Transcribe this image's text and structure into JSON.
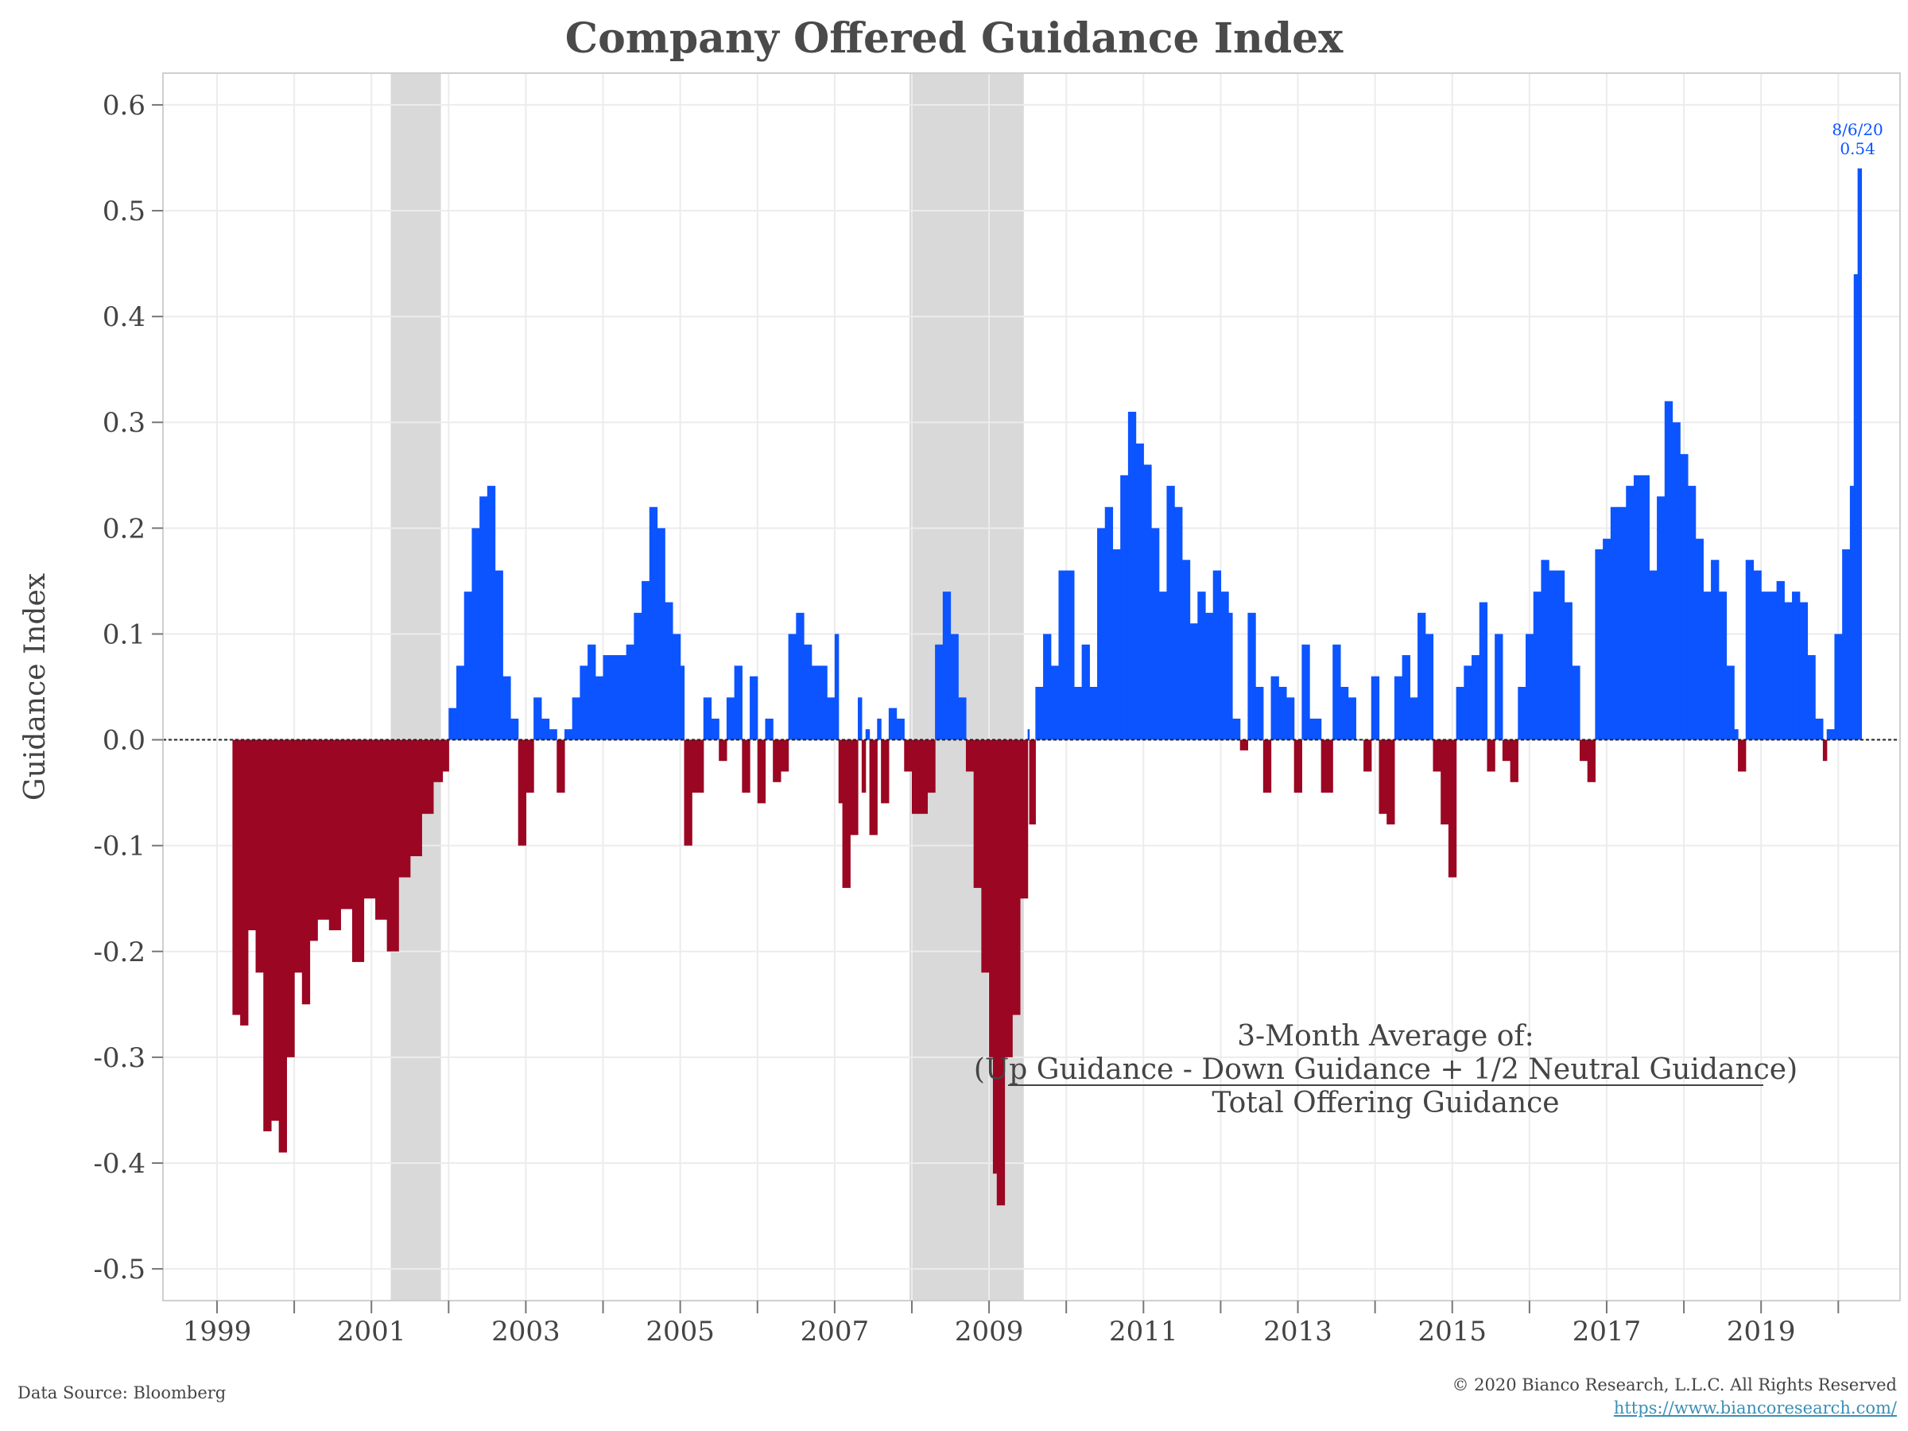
{
  "chart_data": {
    "type": "bar",
    "title": "Company Offered Guidance Index",
    "xlabel": "",
    "ylabel": "Guidance Index",
    "ylim": [
      -0.53,
      0.63
    ],
    "xlim": [
      1998.3,
      2020.8
    ],
    "yticks": [
      0.6,
      0.5,
      0.4,
      0.3,
      0.2,
      0.1,
      0.0,
      -0.1,
      -0.2,
      -0.3,
      -0.4,
      -0.5
    ],
    "ytick_labels": [
      "0.6",
      "0.5",
      "0.4",
      "0.3",
      "0.2",
      "0.1",
      "0.0",
      "-0.1",
      "-0.2",
      "-0.3",
      "-0.4",
      "-0.5"
    ],
    "xticks": [
      1999,
      2001,
      2003,
      2005,
      2007,
      2009,
      2011,
      2013,
      2015,
      2017,
      2019
    ],
    "xtick_labels": [
      "1999",
      "2001",
      "2003",
      "2005",
      "2007",
      "2009",
      "2011",
      "2013",
      "2015",
      "2017",
      "2019"
    ],
    "grid": true,
    "positive_color": "#0b54ff",
    "negative_color": "#9b0622",
    "recession_color": "#d9d9d9",
    "recessions": [
      [
        2001.25,
        2001.9
      ],
      [
        2007.97,
        2009.45
      ]
    ],
    "series": [
      {
        "points": [
          [
            1999.2,
            -0.26
          ],
          [
            1999.3,
            -0.27
          ],
          [
            1999.4,
            -0.18
          ],
          [
            1999.5,
            -0.22
          ],
          [
            1999.6,
            -0.37
          ],
          [
            1999.7,
            -0.36
          ],
          [
            1999.8,
            -0.39
          ],
          [
            1999.9,
            -0.3
          ],
          [
            2000.0,
            -0.22
          ],
          [
            2000.1,
            -0.25
          ],
          [
            2000.2,
            -0.19
          ],
          [
            2000.3,
            -0.17
          ],
          [
            2000.45,
            -0.18
          ],
          [
            2000.6,
            -0.16
          ],
          [
            2000.75,
            -0.21
          ],
          [
            2000.9,
            -0.15
          ],
          [
            2001.05,
            -0.17
          ],
          [
            2001.2,
            -0.2
          ],
          [
            2001.35,
            -0.13
          ],
          [
            2001.5,
            -0.11
          ],
          [
            2001.65,
            -0.07
          ],
          [
            2001.8,
            -0.04
          ],
          [
            2001.92,
            -0.03
          ],
          [
            2002.0,
            0.03
          ],
          [
            2002.1,
            0.07
          ],
          [
            2002.2,
            0.14
          ],
          [
            2002.3,
            0.2
          ],
          [
            2002.4,
            0.23
          ],
          [
            2002.5,
            0.24
          ],
          [
            2002.6,
            0.16
          ],
          [
            2002.7,
            0.06
          ],
          [
            2002.8,
            0.02
          ],
          [
            2002.9,
            -0.1
          ],
          [
            2003.0,
            -0.05
          ],
          [
            2003.1,
            0.04
          ],
          [
            2003.2,
            0.02
          ],
          [
            2003.3,
            0.01
          ],
          [
            2003.4,
            -0.05
          ],
          [
            2003.5,
            0.01
          ],
          [
            2003.6,
            0.04
          ],
          [
            2003.7,
            0.07
          ],
          [
            2003.8,
            0.09
          ],
          [
            2003.9,
            0.06
          ],
          [
            2004.0,
            0.08
          ],
          [
            2004.1,
            0.08
          ],
          [
            2004.2,
            0.08
          ],
          [
            2004.3,
            0.09
          ],
          [
            2004.4,
            0.12
          ],
          [
            2004.5,
            0.15
          ],
          [
            2004.6,
            0.22
          ],
          [
            2004.7,
            0.2
          ],
          [
            2004.8,
            0.13
          ],
          [
            2004.9,
            0.1
          ],
          [
            2005.0,
            0.07
          ],
          [
            2005.05,
            -0.1
          ],
          [
            2005.15,
            -0.05
          ],
          [
            2005.3,
            0.04
          ],
          [
            2005.4,
            0.02
          ],
          [
            2005.5,
            -0.02
          ],
          [
            2005.6,
            0.04
          ],
          [
            2005.7,
            0.07
          ],
          [
            2005.8,
            -0.05
          ],
          [
            2005.9,
            0.06
          ],
          [
            2006.0,
            -0.06
          ],
          [
            2006.1,
            0.02
          ],
          [
            2006.2,
            -0.04
          ],
          [
            2006.3,
            -0.03
          ],
          [
            2006.4,
            0.1
          ],
          [
            2006.5,
            0.12
          ],
          [
            2006.6,
            0.09
          ],
          [
            2006.7,
            0.07
          ],
          [
            2006.8,
            0.07
          ],
          [
            2006.9,
            0.04
          ],
          [
            2007.0,
            0.1
          ],
          [
            2007.05,
            -0.06
          ],
          [
            2007.1,
            -0.14
          ],
          [
            2007.2,
            -0.09
          ],
          [
            2007.3,
            0.04
          ],
          [
            2007.35,
            -0.05
          ],
          [
            2007.4,
            0.01
          ],
          [
            2007.45,
            -0.09
          ],
          [
            2007.55,
            0.02
          ],
          [
            2007.6,
            -0.06
          ],
          [
            2007.7,
            0.03
          ],
          [
            2007.8,
            0.02
          ],
          [
            2007.9,
            -0.03
          ],
          [
            2008.0,
            -0.07
          ],
          [
            2008.1,
            -0.07
          ],
          [
            2008.2,
            -0.05
          ],
          [
            2008.3,
            0.09
          ],
          [
            2008.4,
            0.14
          ],
          [
            2008.5,
            0.1
          ],
          [
            2008.6,
            0.04
          ],
          [
            2008.7,
            -0.03
          ],
          [
            2008.8,
            -0.14
          ],
          [
            2008.9,
            -0.22
          ],
          [
            2009.0,
            -0.3
          ],
          [
            2009.05,
            -0.41
          ],
          [
            2009.1,
            -0.44
          ],
          [
            2009.2,
            -0.3
          ],
          [
            2009.3,
            -0.26
          ],
          [
            2009.4,
            -0.15
          ],
          [
            2009.5,
            0.01
          ],
          [
            2009.52,
            -0.08
          ],
          [
            2009.6,
            0.05
          ],
          [
            2009.7,
            0.1
          ],
          [
            2009.8,
            0.07
          ],
          [
            2009.9,
            0.16
          ],
          [
            2010.0,
            0.16
          ],
          [
            2010.1,
            0.05
          ],
          [
            2010.2,
            0.09
          ],
          [
            2010.3,
            0.05
          ],
          [
            2010.4,
            0.2
          ],
          [
            2010.5,
            0.22
          ],
          [
            2010.6,
            0.18
          ],
          [
            2010.7,
            0.25
          ],
          [
            2010.8,
            0.31
          ],
          [
            2010.9,
            0.28
          ],
          [
            2011.0,
            0.26
          ],
          [
            2011.1,
            0.2
          ],
          [
            2011.2,
            0.14
          ],
          [
            2011.3,
            0.24
          ],
          [
            2011.4,
            0.22
          ],
          [
            2011.5,
            0.17
          ],
          [
            2011.6,
            0.11
          ],
          [
            2011.7,
            0.14
          ],
          [
            2011.8,
            0.12
          ],
          [
            2011.9,
            0.16
          ],
          [
            2012.0,
            0.14
          ],
          [
            2012.1,
            0.12
          ],
          [
            2012.15,
            0.02
          ],
          [
            2012.25,
            -0.01
          ],
          [
            2012.35,
            0.12
          ],
          [
            2012.45,
            0.05
          ],
          [
            2012.55,
            -0.05
          ],
          [
            2012.65,
            0.06
          ],
          [
            2012.75,
            0.05
          ],
          [
            2012.85,
            0.04
          ],
          [
            2012.95,
            -0.05
          ],
          [
            2013.05,
            0.09
          ],
          [
            2013.15,
            0.02
          ],
          [
            2013.3,
            -0.05
          ],
          [
            2013.45,
            0.09
          ],
          [
            2013.55,
            0.05
          ],
          [
            2013.65,
            0.04
          ],
          [
            2013.75,
            0.0
          ],
          [
            2013.85,
            -0.03
          ],
          [
            2013.95,
            0.06
          ],
          [
            2014.05,
            -0.07
          ],
          [
            2014.15,
            -0.08
          ],
          [
            2014.25,
            0.06
          ],
          [
            2014.35,
            0.08
          ],
          [
            2014.45,
            0.04
          ],
          [
            2014.55,
            0.12
          ],
          [
            2014.65,
            0.1
          ],
          [
            2014.75,
            -0.03
          ],
          [
            2014.85,
            -0.08
          ],
          [
            2014.95,
            -0.13
          ],
          [
            2015.05,
            0.05
          ],
          [
            2015.15,
            0.07
          ],
          [
            2015.25,
            0.08
          ],
          [
            2015.35,
            0.13
          ],
          [
            2015.45,
            -0.03
          ],
          [
            2015.55,
            0.1
          ],
          [
            2015.65,
            -0.02
          ],
          [
            2015.75,
            -0.04
          ],
          [
            2015.85,
            0.05
          ],
          [
            2015.95,
            0.1
          ],
          [
            2016.05,
            0.14
          ],
          [
            2016.15,
            0.17
          ],
          [
            2016.25,
            0.16
          ],
          [
            2016.35,
            0.16
          ],
          [
            2016.45,
            0.13
          ],
          [
            2016.55,
            0.07
          ],
          [
            2016.65,
            -0.02
          ],
          [
            2016.75,
            -0.04
          ],
          [
            2016.85,
            0.18
          ],
          [
            2016.95,
            0.19
          ],
          [
            2017.05,
            0.22
          ],
          [
            2017.15,
            0.22
          ],
          [
            2017.25,
            0.24
          ],
          [
            2017.35,
            0.25
          ],
          [
            2017.45,
            0.25
          ],
          [
            2017.55,
            0.16
          ],
          [
            2017.65,
            0.23
          ],
          [
            2017.75,
            0.32
          ],
          [
            2017.85,
            0.3
          ],
          [
            2017.95,
            0.27
          ],
          [
            2018.05,
            0.24
          ],
          [
            2018.15,
            0.19
          ],
          [
            2018.25,
            0.14
          ],
          [
            2018.35,
            0.17
          ],
          [
            2018.45,
            0.14
          ],
          [
            2018.55,
            0.07
          ],
          [
            2018.65,
            0.01
          ],
          [
            2018.7,
            -0.03
          ],
          [
            2018.8,
            0.17
          ],
          [
            2018.9,
            0.16
          ],
          [
            2019.0,
            0.14
          ],
          [
            2019.1,
            0.14
          ],
          [
            2019.2,
            0.15
          ],
          [
            2019.3,
            0.13
          ],
          [
            2019.4,
            0.14
          ],
          [
            2019.5,
            0.13
          ],
          [
            2019.6,
            0.08
          ],
          [
            2019.7,
            0.02
          ],
          [
            2019.8,
            -0.02
          ],
          [
            2019.85,
            0.01
          ],
          [
            2019.95,
            0.1
          ],
          [
            2020.05,
            0.18
          ],
          [
            2020.15,
            0.24
          ],
          [
            2020.2,
            0.44
          ],
          [
            2020.25,
            0.54
          ]
        ]
      }
    ],
    "annotations": {
      "last_date": "8/6/20",
      "last_value": "0.54",
      "note_line1": "3-Month Average of:",
      "note_line2": "(Up Guidance - Down Guidance + 1/2 Neutral Guidance)",
      "note_line3": "Total Offering Guidance"
    }
  },
  "footer": {
    "source": "Data Source: Bloomberg",
    "copyright": "© 2020 Bianco Research, L.L.C. All Rights Reserved",
    "url": "https://www.biancoresearch.com/"
  }
}
